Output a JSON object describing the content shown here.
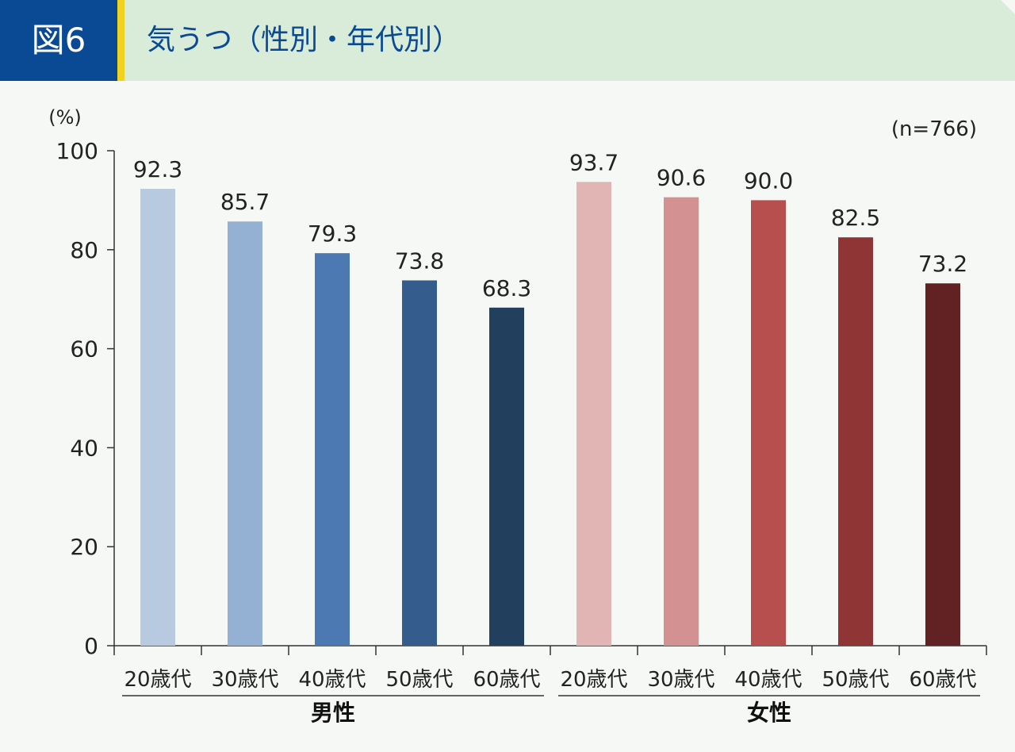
{
  "header": {
    "figure_label": "図6",
    "title": "気うつ（性別・年代別）"
  },
  "colors": {
    "panel_bg": "#f5f8f4",
    "header_bg": "#d9ebd9",
    "badge_bg": "#0a4a94",
    "accent_stripe": "#f0d21f"
  },
  "chart_data": {
    "type": "bar",
    "ylabel": "(%)",
    "sample_note": "(n=766)",
    "ylim": [
      0,
      100
    ],
    "yticks": [
      "0",
      "20",
      "40",
      "60",
      "80",
      "100"
    ],
    "grid": false,
    "categories": [
      "20歳代",
      "30歳代",
      "40歳代",
      "50歳代",
      "60歳代",
      "20歳代",
      "30歳代",
      "40歳代",
      "50歳代",
      "60歳代"
    ],
    "groups": [
      {
        "name": "男性",
        "start": 0,
        "count": 5
      },
      {
        "name": "女性",
        "start": 5,
        "count": 5
      }
    ],
    "values": [
      92.3,
      85.7,
      79.3,
      73.8,
      68.3,
      93.7,
      90.6,
      90.0,
      82.5,
      73.2
    ],
    "value_labels": [
      "92.3",
      "85.7",
      "79.3",
      "73.8",
      "68.3",
      "93.7",
      "90.6",
      "90.0",
      "82.5",
      "73.2"
    ],
    "bar_colors": [
      "#b8cae0",
      "#94b0d3",
      "#4c79b2",
      "#345d8e",
      "#233f5e",
      "#e2b5b5",
      "#d49191",
      "#b74f4f",
      "#903535",
      "#622223"
    ]
  }
}
